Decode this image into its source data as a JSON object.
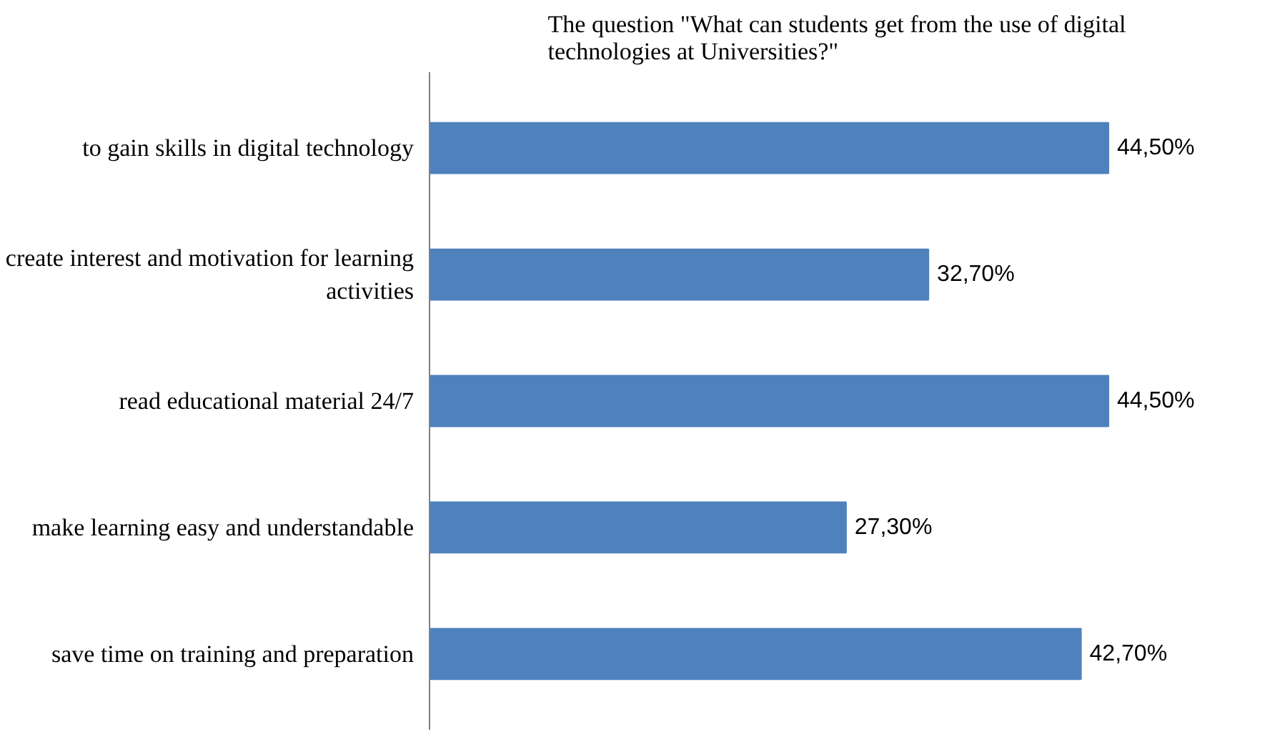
{
  "chart_data": {
    "type": "bar",
    "orientation": "horizontal",
    "title": "The question \"What can students get from the use of digital technologies at Universities?\"",
    "categories": [
      "to gain skills in digital technology",
      "create interest and motivation for learning activities",
      "read educational material 24/7",
      "make learning easy and understandable",
      "save time on training and preparation"
    ],
    "values": [
      44.5,
      32.7,
      44.5,
      27.3,
      42.7
    ],
    "value_labels": [
      "44,50%",
      "32,70%",
      "44,50%",
      "27,30%",
      "42,70%"
    ],
    "color": "#4f81bd",
    "tick_labels": "y",
    "grid": false
  }
}
